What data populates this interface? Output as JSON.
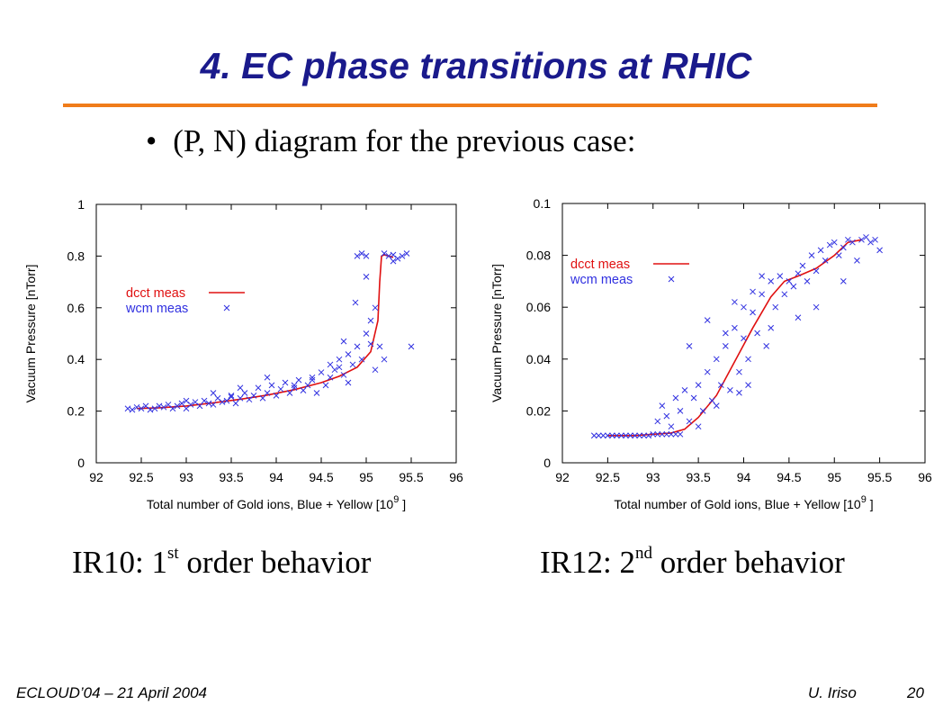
{
  "slide": {
    "title": "4. EC phase transitions at RHIC",
    "bullet": "(P, N) diagram for the previous case:",
    "footer_left": "ECLOUD’04 – 21 April 2004",
    "footer_author": "U. Iriso",
    "page_number": "20",
    "colors": {
      "title": "#1a1a8c",
      "rule": "#f07c1a"
    }
  },
  "captions": [
    {
      "prefix": "IR10: 1",
      "sup": "st",
      "suffix": " order behavior"
    },
    {
      "prefix": "IR12: 2",
      "sup": "nd",
      "suffix": " order behavior"
    }
  ],
  "chart_data": [
    {
      "type": "scatter",
      "xlabel": "Total number of Gold ions, Blue + Yellow [10^9 ]",
      "xlabel_base": "Total number of Gold ions, Blue + Yellow [10",
      "xlabel_exp": "9",
      "xlabel_end": " ]",
      "ylabel": "Vacuum Pressure [nTorr]",
      "xlim": [
        92,
        96
      ],
      "ylim": [
        0,
        1
      ],
      "x_ticks": [
        92,
        92.5,
        93,
        93.5,
        94,
        94.5,
        95,
        95.5,
        96
      ],
      "x_tick_labels": [
        "92",
        "92.5",
        "93",
        "93.5",
        "94",
        "94.5",
        "95",
        "95.5",
        "96"
      ],
      "y_ticks": [
        0,
        0.2,
        0.4,
        0.6,
        0.8,
        1
      ],
      "y_tick_labels": [
        "0",
        "0.2",
        "0.4",
        "0.6",
        "0.8",
        "1"
      ],
      "legend_position": "left",
      "grid": false,
      "series": [
        {
          "name": "dcct meas",
          "kind": "line",
          "color": "#e01010",
          "x": [
            92.45,
            92.7,
            93.0,
            93.3,
            93.6,
            93.9,
            94.2,
            94.5,
            94.7,
            94.9,
            95.05,
            95.13,
            95.15,
            95.17,
            95.2,
            95.3
          ],
          "y": [
            0.21,
            0.213,
            0.22,
            0.232,
            0.246,
            0.262,
            0.283,
            0.31,
            0.335,
            0.37,
            0.43,
            0.55,
            0.7,
            0.8,
            0.805,
            0.795
          ]
        },
        {
          "name": "wcm meas",
          "kind": "points",
          "color": "#3030e0",
          "x": [
            92.35,
            92.4,
            92.45,
            92.5,
            92.55,
            92.6,
            92.65,
            92.7,
            92.75,
            92.8,
            92.85,
            92.9,
            92.95,
            93.0,
            93.05,
            93.1,
            93.15,
            93.2,
            93.25,
            93.3,
            93.35,
            93.4,
            93.45,
            93.5,
            93.55,
            93.6,
            93.65,
            93.7,
            93.75,
            93.8,
            93.85,
            93.9,
            93.95,
            94.0,
            94.05,
            94.1,
            94.15,
            94.2,
            94.25,
            94.3,
            94.35,
            94.4,
            94.45,
            94.5,
            94.55,
            94.6,
            94.65,
            94.7,
            94.75,
            94.8,
            94.85,
            94.9,
            94.95,
            95.0,
            95.05,
            95.1,
            95.15,
            94.6,
            94.75,
            94.8,
            94.88,
            95.0,
            95.05,
            95.1,
            95.2,
            95.25,
            95.3,
            95.35,
            95.4,
            95.45,
            95.3,
            95.5,
            94.9,
            94.95,
            95.0,
            95.2,
            93.3,
            93.6,
            93.9,
            94.2,
            94.4,
            94.7,
            93.0,
            93.5
          ],
          "y": [
            0.21,
            0.205,
            0.215,
            0.21,
            0.22,
            0.205,
            0.21,
            0.22,
            0.215,
            0.225,
            0.21,
            0.22,
            0.23,
            0.21,
            0.225,
            0.235,
            0.22,
            0.24,
            0.23,
            0.225,
            0.25,
            0.235,
            0.24,
            0.255,
            0.23,
            0.25,
            0.27,
            0.245,
            0.26,
            0.29,
            0.25,
            0.27,
            0.3,
            0.26,
            0.285,
            0.31,
            0.27,
            0.3,
            0.32,
            0.28,
            0.3,
            0.33,
            0.27,
            0.35,
            0.3,
            0.33,
            0.36,
            0.4,
            0.34,
            0.42,
            0.38,
            0.45,
            0.4,
            0.5,
            0.55,
            0.6,
            0.45,
            0.38,
            0.47,
            0.31,
            0.62,
            0.72,
            0.46,
            0.36,
            0.4,
            0.8,
            0.805,
            0.79,
            0.8,
            0.81,
            0.78,
            0.45,
            0.8,
            0.81,
            0.8,
            0.81,
            0.27,
            0.29,
            0.33,
            0.29,
            0.32,
            0.37,
            0.24,
            0.26
          ]
        }
      ]
    },
    {
      "type": "scatter",
      "xlabel": "Total number of Gold ions, Blue + Yellow [10^9 ]",
      "xlabel_base": "Total number of Gold ions, Blue + Yellow [10",
      "xlabel_exp": "9",
      "xlabel_end": " ]",
      "ylabel": "Vacuum Pressure [nTorr]",
      "xlim": [
        92,
        96
      ],
      "ylim": [
        0,
        0.1
      ],
      "x_ticks": [
        92,
        92.5,
        93,
        93.5,
        94,
        94.5,
        95,
        95.5,
        96
      ],
      "x_tick_labels": [
        "92",
        "92.5",
        "93",
        "93.5",
        "94",
        "94.5",
        "95",
        "95.5",
        "96"
      ],
      "y_ticks": [
        0,
        0.02,
        0.04,
        0.06,
        0.08,
        0.1
      ],
      "y_tick_labels": [
        "0",
        "0.02",
        "0.04",
        "0.06",
        "0.08",
        "0.1"
      ],
      "legend_position": "top-left",
      "grid": false,
      "series": [
        {
          "name": "dcct meas",
          "kind": "line",
          "color": "#e01010",
          "x": [
            92.5,
            92.8,
            93.0,
            93.2,
            93.35,
            93.5,
            93.7,
            93.9,
            94.1,
            94.3,
            94.45,
            94.6,
            94.8,
            95.0,
            95.15,
            95.3
          ],
          "y": [
            0.0105,
            0.0105,
            0.011,
            0.0115,
            0.013,
            0.0175,
            0.026,
            0.039,
            0.052,
            0.064,
            0.07,
            0.072,
            0.075,
            0.08,
            0.085,
            0.086
          ]
        },
        {
          "name": "wcm meas",
          "kind": "points",
          "color": "#3030e0",
          "x": [
            92.35,
            92.4,
            92.45,
            92.5,
            92.55,
            92.6,
            92.65,
            92.7,
            92.75,
            92.8,
            92.85,
            92.9,
            92.95,
            93.0,
            93.05,
            93.1,
            93.15,
            93.2,
            93.25,
            93.3,
            93.05,
            93.1,
            93.2,
            93.3,
            93.35,
            93.4,
            93.45,
            93.5,
            93.55,
            93.6,
            93.65,
            93.7,
            93.75,
            93.8,
            93.85,
            93.9,
            93.95,
            94.0,
            94.05,
            94.1,
            94.15,
            94.2,
            94.25,
            94.3,
            94.35,
            94.4,
            94.45,
            94.5,
            94.55,
            94.6,
            94.65,
            94.7,
            94.75,
            94.8,
            94.85,
            94.9,
            94.95,
            95.0,
            95.05,
            95.1,
            95.15,
            95.2,
            95.25,
            95.3,
            95.35,
            95.4,
            95.45,
            95.5,
            93.4,
            93.6,
            93.8,
            93.9,
            94.0,
            94.1,
            94.2,
            93.15,
            93.25,
            93.5,
            93.7,
            94.3,
            94.6,
            94.8,
            95.1,
            93.95,
            94.05
          ],
          "y": [
            0.0105,
            0.0105,
            0.0105,
            0.0105,
            0.0105,
            0.0105,
            0.0105,
            0.0105,
            0.0105,
            0.0105,
            0.0105,
            0.0105,
            0.0105,
            0.011,
            0.011,
            0.011,
            0.011,
            0.011,
            0.011,
            0.011,
            0.016,
            0.022,
            0.014,
            0.02,
            0.028,
            0.016,
            0.025,
            0.03,
            0.02,
            0.035,
            0.024,
            0.04,
            0.03,
            0.045,
            0.028,
            0.052,
            0.035,
            0.06,
            0.04,
            0.066,
            0.05,
            0.072,
            0.045,
            0.07,
            0.06,
            0.072,
            0.065,
            0.07,
            0.068,
            0.073,
            0.076,
            0.07,
            0.08,
            0.074,
            0.082,
            0.078,
            0.084,
            0.085,
            0.08,
            0.083,
            0.086,
            0.085,
            0.078,
            0.086,
            0.087,
            0.085,
            0.086,
            0.082,
            0.045,
            0.055,
            0.05,
            0.062,
            0.048,
            0.058,
            0.065,
            0.018,
            0.025,
            0.014,
            0.022,
            0.052,
            0.056,
            0.06,
            0.07,
            0.027,
            0.03
          ]
        }
      ]
    }
  ]
}
